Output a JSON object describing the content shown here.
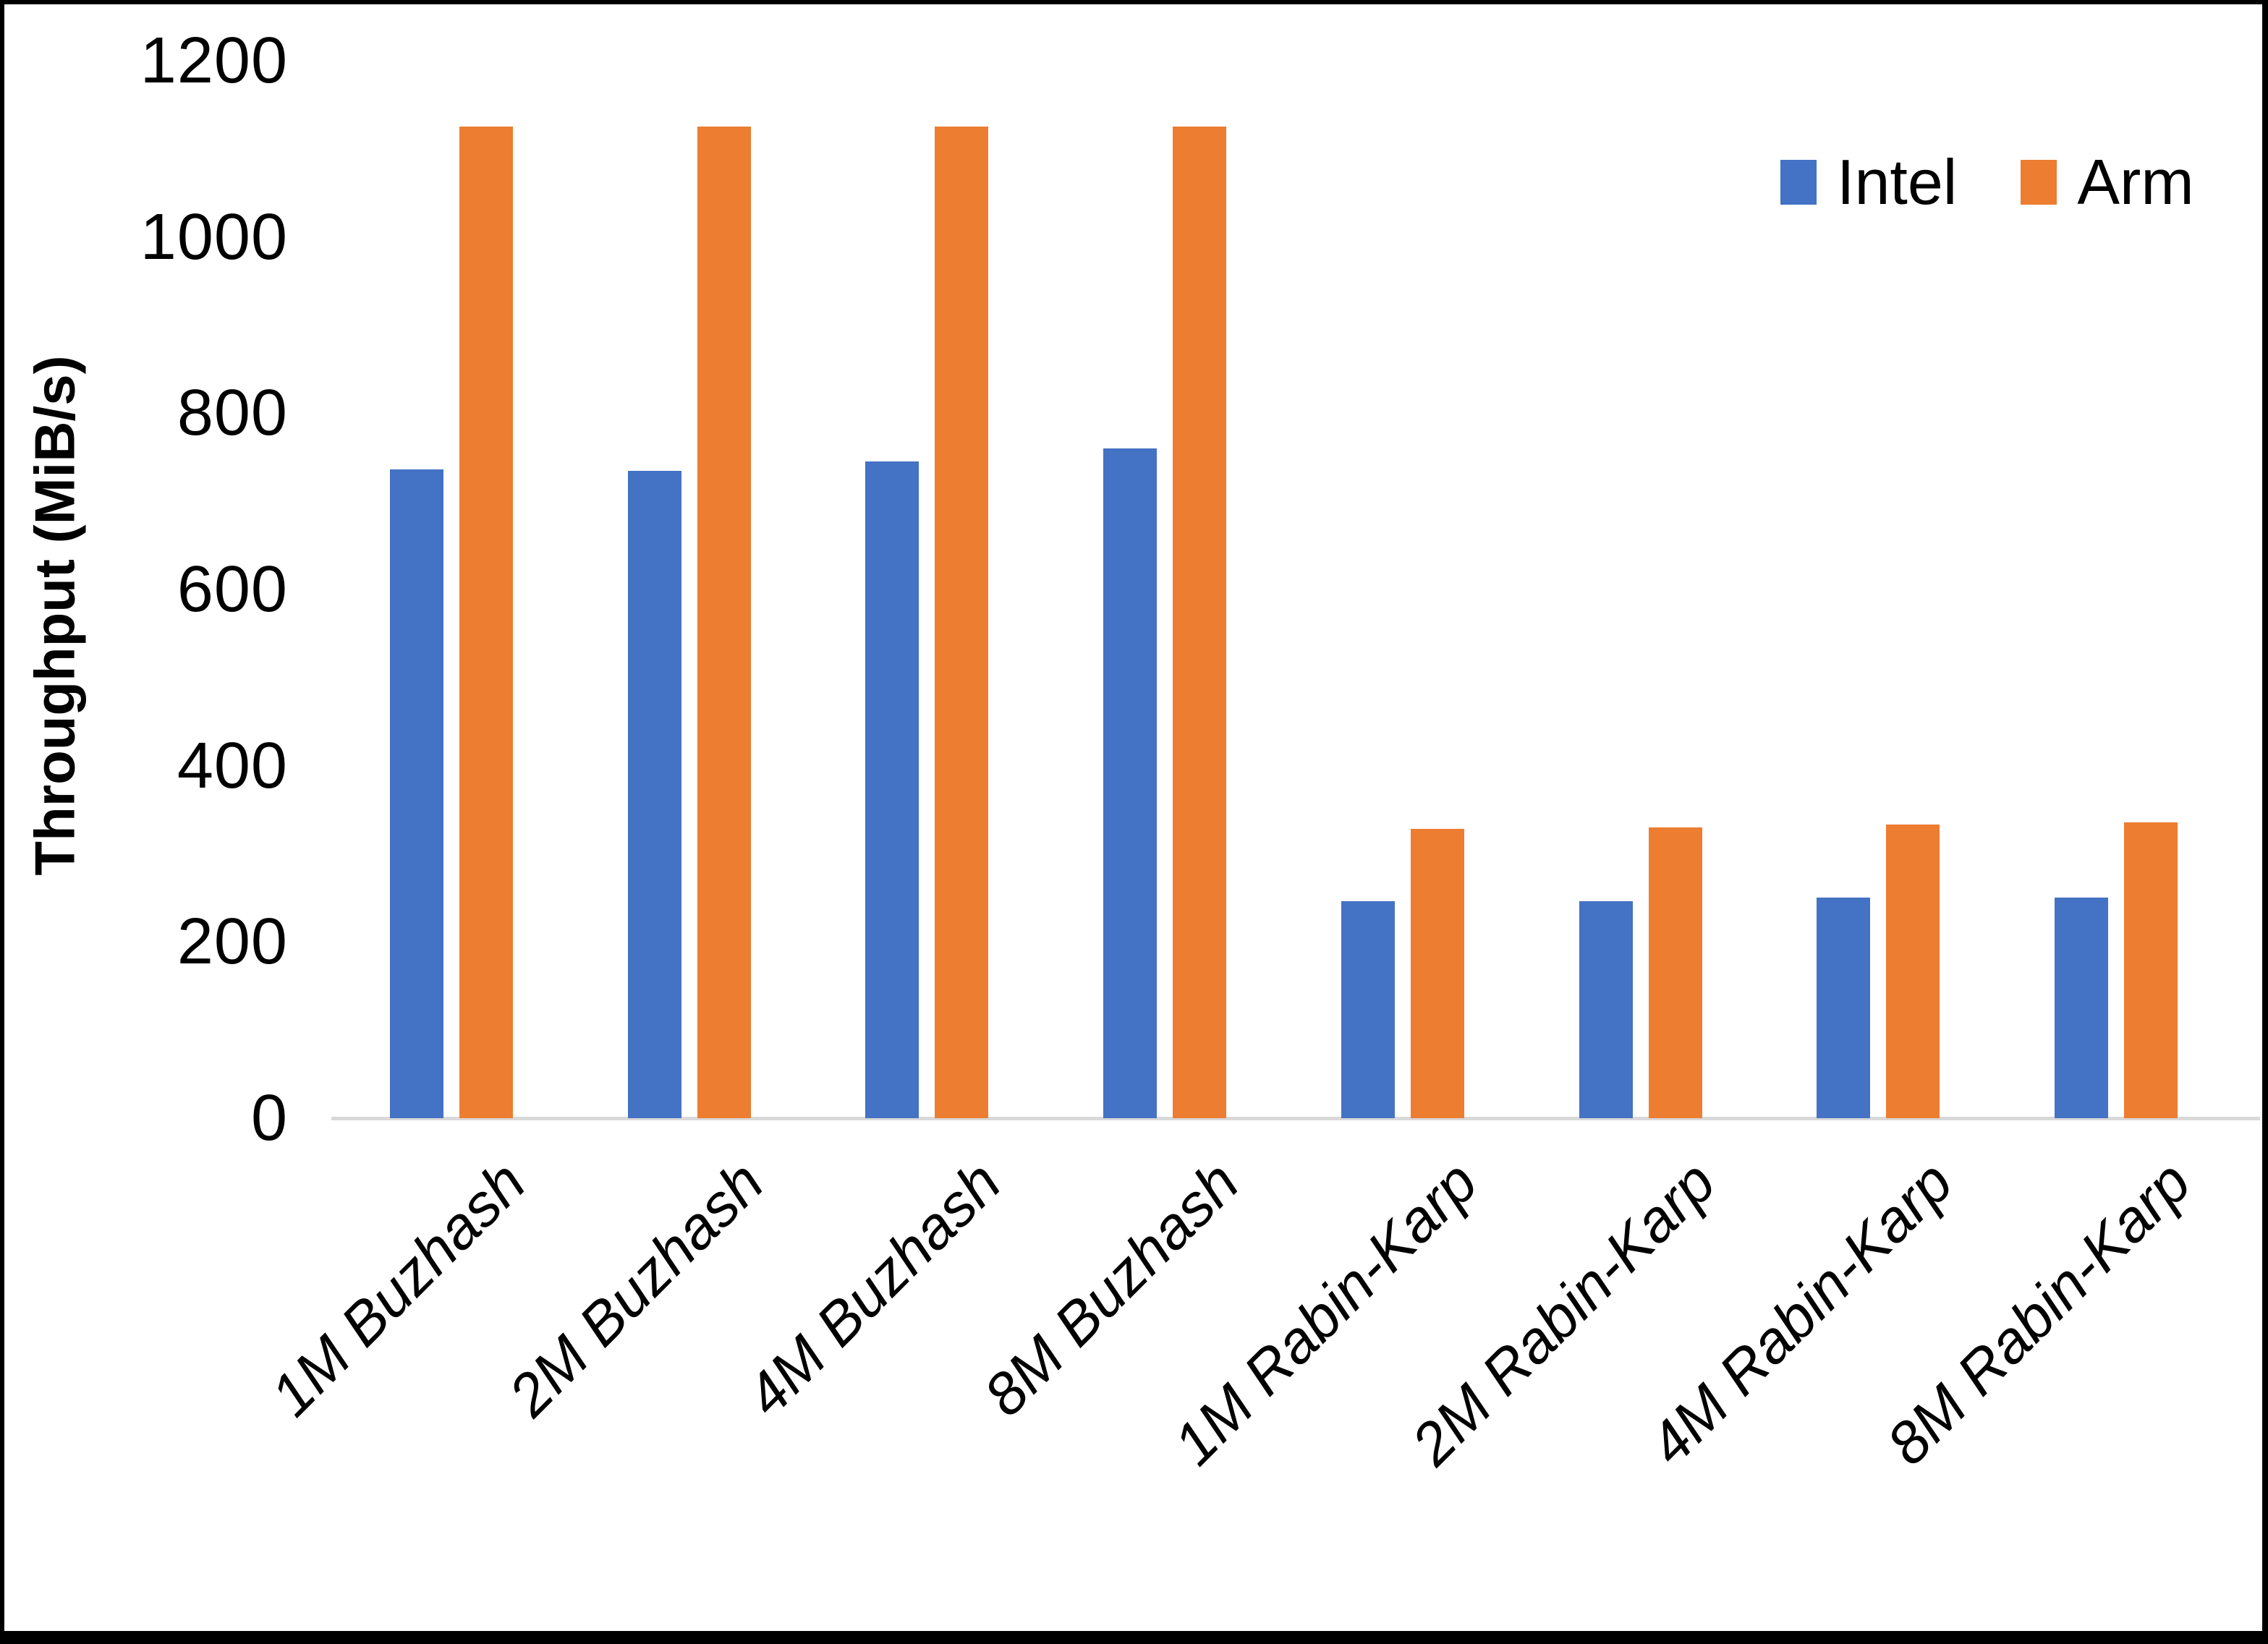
{
  "chart_data": {
    "type": "bar",
    "title": "",
    "xlabel": "",
    "ylabel": "Throughput (MiB/s)",
    "ylim": [
      0,
      1200
    ],
    "y_ticks": [
      0,
      200,
      400,
      600,
      800,
      1000,
      1200
    ],
    "grid": false,
    "legend_position": "top-right",
    "axis_line_color": "#D9D9D9",
    "text_color": "#000000",
    "categories": [
      "1M Buzhash",
      "2M Buzhash",
      "4M Buzhash",
      "8M Buzhash",
      "1M Rabin-Karp",
      "2M Rabin-Karp",
      "4M Rabin-Karp",
      "8M Rabin-Karp"
    ],
    "series": [
      {
        "name": "Intel",
        "color": "#4472C4",
        "values": [
          736,
          735,
          745,
          760,
          246,
          246,
          250,
          250
        ]
      },
      {
        "name": "Arm",
        "color": "#ED7D31",
        "values": [
          1125,
          1125,
          1125,
          1125,
          328,
          330,
          333,
          336
        ]
      }
    ]
  }
}
